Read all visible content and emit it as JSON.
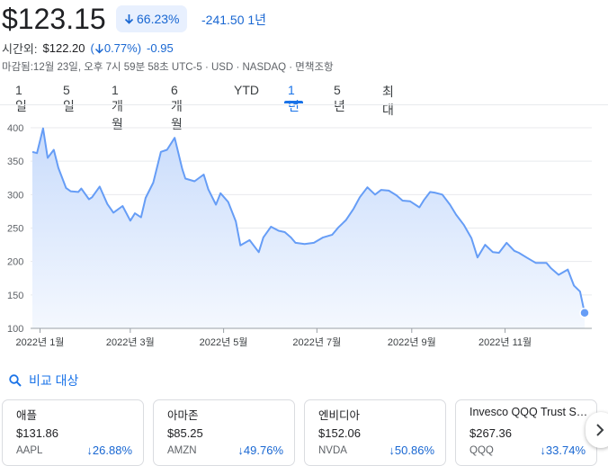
{
  "quote": {
    "price": "$123.15",
    "change_pct": "66.23%",
    "change_abs": "-241.50",
    "period": "1년"
  },
  "after_hours": {
    "label": "시간외:",
    "price": "$122.20",
    "pct_open": "(",
    "pct": "0.77%)",
    "abs": "-0.95"
  },
  "meta": "마감됨:12월 23일, 오후 7시 59분 58초 UTC-5 · USD · NASDAQ · 면책조항",
  "tabs": [
    "1일",
    "5일",
    "1개월",
    "6개월",
    "YTD",
    "1년",
    "5년",
    "최대"
  ],
  "active_tab": "1년",
  "chart_data": {
    "type": "area",
    "ylim": [
      100,
      400
    ],
    "y_ticks": [
      "400",
      "350",
      "300",
      "250",
      "200",
      "150",
      "100"
    ],
    "x_ticks": [
      "2022년 1월",
      "2022년 3월",
      "2022년 5월",
      "2022년 7월",
      "2022년 9월",
      "2022년 11월"
    ],
    "grid": true,
    "line_color": "#669df6",
    "series": [
      {
        "x": [
          "2021-12-27",
          "2021-12-30",
          "2022-01-03",
          "2022-01-06",
          "2022-01-10",
          "2022-01-13",
          "2022-01-18",
          "2022-01-21",
          "2022-01-26",
          "2022-01-28",
          "2022-02-02",
          "2022-02-04",
          "2022-02-09",
          "2022-02-14",
          "2022-02-18",
          "2022-02-24",
          "2022-03-01",
          "2022-03-04",
          "2022-03-08",
          "2022-03-11",
          "2022-03-16",
          "2022-03-21",
          "2022-03-25",
          "2022-03-30",
          "2022-04-04",
          "2022-04-06",
          "2022-04-12",
          "2022-04-18",
          "2022-04-21",
          "2022-04-26",
          "2022-04-29",
          "2022-05-04",
          "2022-05-09",
          "2022-05-12",
          "2022-05-18",
          "2022-05-24",
          "2022-05-27",
          "2022-06-01",
          "2022-06-06",
          "2022-06-10",
          "2022-06-14",
          "2022-06-17",
          "2022-06-23",
          "2022-06-29",
          "2022-07-05",
          "2022-07-11",
          "2022-07-15",
          "2022-07-20",
          "2022-07-25",
          "2022-07-29",
          "2022-08-03",
          "2022-08-08",
          "2022-08-12",
          "2022-08-17",
          "2022-08-22",
          "2022-08-26",
          "2022-08-31",
          "2022-09-06",
          "2022-09-09",
          "2022-09-13",
          "2022-09-16",
          "2022-09-21",
          "2022-09-26",
          "2022-09-30",
          "2022-10-05",
          "2022-10-10",
          "2022-10-14",
          "2022-10-19",
          "2022-10-24",
          "2022-10-28",
          "2022-11-02",
          "2022-11-07",
          "2022-11-10",
          "2022-11-15",
          "2022-11-21",
          "2022-11-28",
          "2022-12-01",
          "2022-12-06",
          "2022-12-12",
          "2022-12-16",
          "2022-12-20",
          "2022-12-23"
        ],
        "values": [
          364,
          362,
          399,
          355,
          367,
          340,
          310,
          305,
          304,
          309,
          293,
          296,
          312,
          286,
          273,
          283,
          261,
          272,
          266,
          295,
          318,
          364,
          367,
          385,
          338,
          324,
          320,
          330,
          308,
          285,
          302,
          289,
          260,
          224,
          232,
          214,
          236,
          252,
          246,
          244,
          236,
          228,
          226,
          228,
          236,
          240,
          251,
          262,
          279,
          296,
          311,
          300,
          307,
          306,
          299,
          291,
          290,
          281,
          292,
          304,
          303,
          300,
          285,
          270,
          255,
          235,
          206,
          225,
          214,
          213,
          228,
          216,
          213,
          206,
          198,
          198,
          190,
          180,
          188,
          164,
          155,
          123.15
        ]
      }
    ]
  },
  "compare": {
    "label": "비교 대상",
    "cards": [
      {
        "name": "애플",
        "price": "$131.86",
        "ticker": "AAPL",
        "pct": "26.88%"
      },
      {
        "name": "아마존",
        "price": "$85.25",
        "ticker": "AMZN",
        "pct": "49.76%"
      },
      {
        "name": "엔비디아",
        "price": "$152.06",
        "ticker": "NVDA",
        "pct": "50.86%"
      },
      {
        "name": "Invesco QQQ Trust Seri...",
        "price": "$267.36",
        "ticker": "QQQ",
        "pct": "33.74%"
      }
    ]
  },
  "colors": {
    "accent": "#1a73e8",
    "negative": "#1967d2",
    "pill_bg": "#e8f0fe"
  },
  "icons": {
    "down_arrow": "arrow-down-icon",
    "search": "search-icon",
    "next": "chevron-right-icon"
  }
}
